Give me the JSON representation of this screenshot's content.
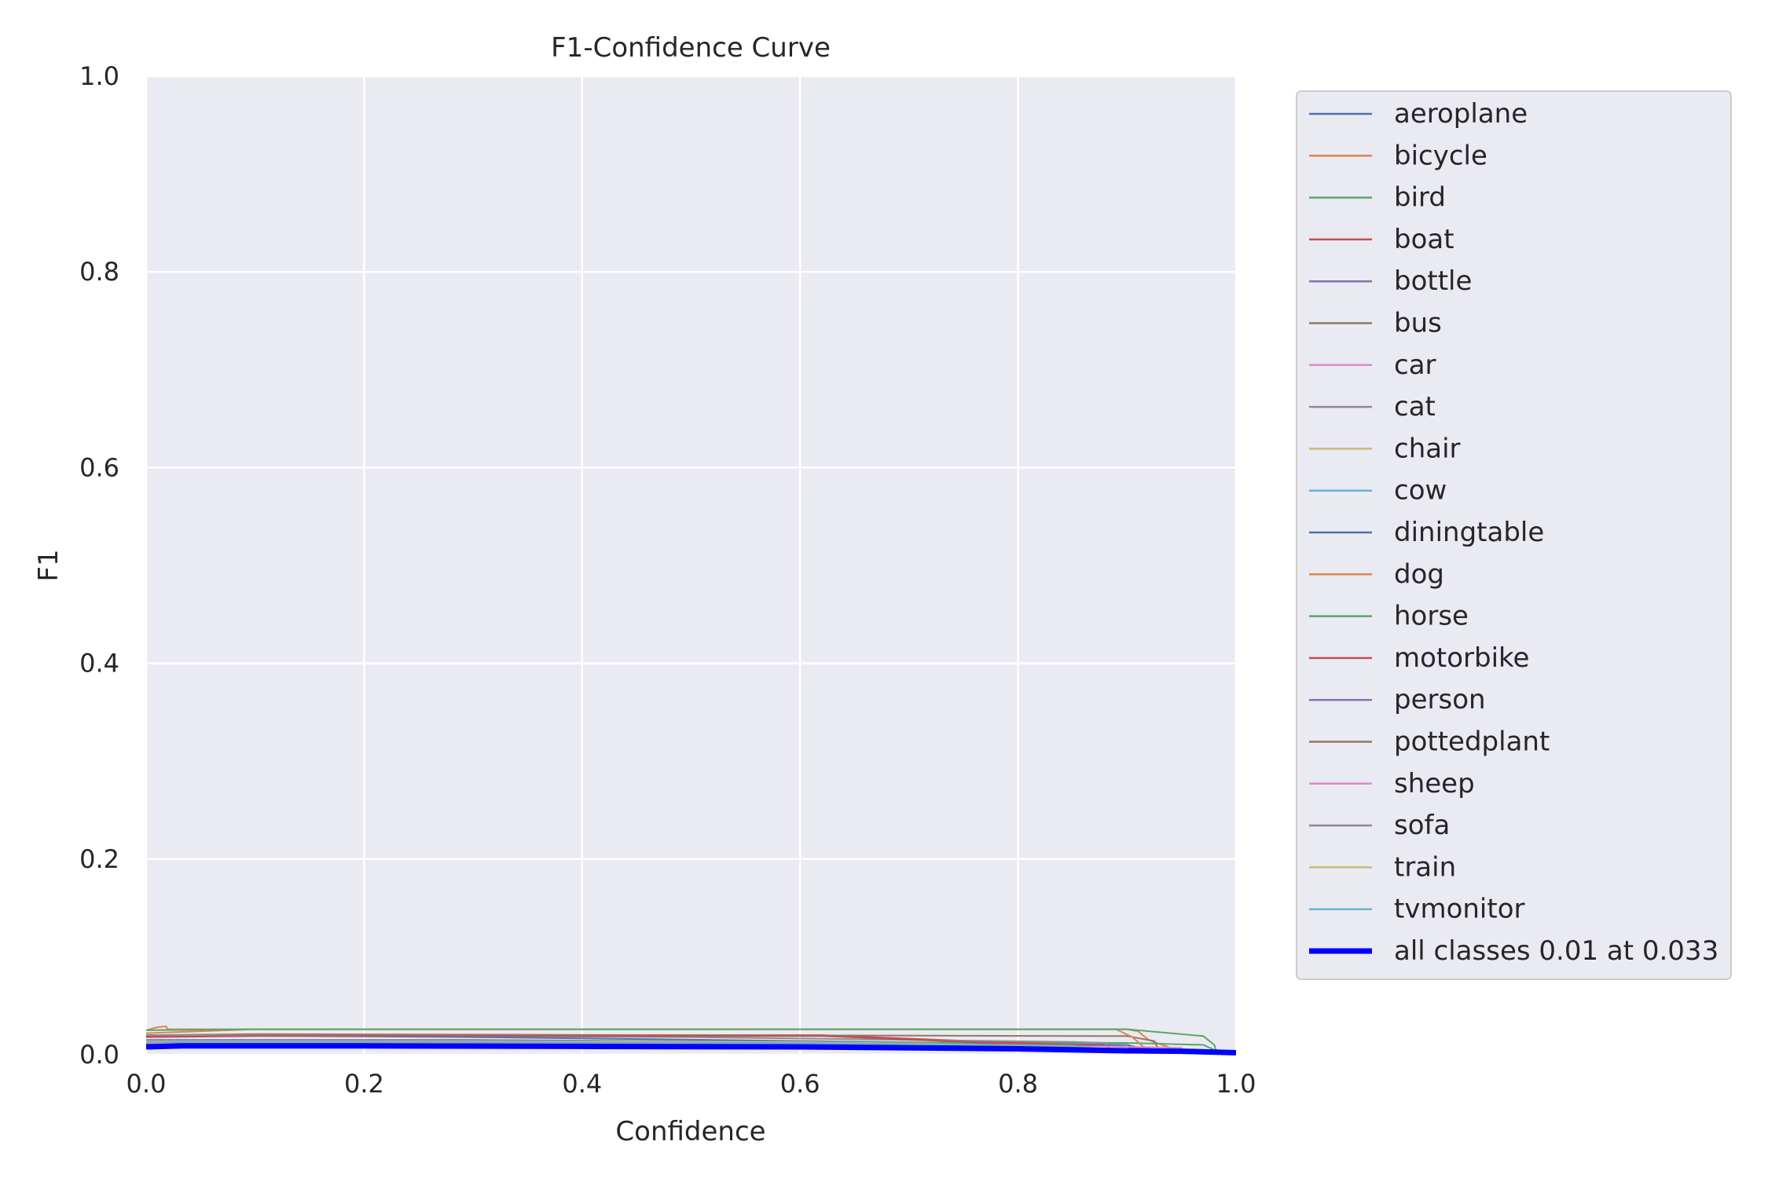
{
  "chart_data": {
    "type": "line",
    "title": "F1-Confidence Curve",
    "xlabel": "Confidence",
    "ylabel": "F1",
    "xlim": [
      0,
      1
    ],
    "ylim": [
      0,
      1
    ],
    "x_ticks": [
      "0.0",
      "0.2",
      "0.4",
      "0.6",
      "0.8",
      "1.0"
    ],
    "y_ticks": [
      "0.0",
      "0.2",
      "0.4",
      "0.6",
      "0.8",
      "1.0"
    ],
    "grid": true,
    "legend_position": "outside-right",
    "series": [
      {
        "name": "aeroplane",
        "color": "#4c72b0",
        "x": [
          0,
          0.01,
          0.3,
          0.6,
          0.9,
          0.93
        ],
        "y": [
          0.018,
          0.02,
          0.018,
          0.014,
          0.01,
          0.002
        ]
      },
      {
        "name": "bicycle",
        "color": "#dd8452",
        "x": [
          0,
          0.01,
          0.018,
          0.02,
          0.1,
          0.5,
          0.9,
          0.91,
          0.92,
          0.95
        ],
        "y": [
          0.025,
          0.028,
          0.029,
          0.026,
          0.026,
          0.026,
          0.026,
          0.024,
          0.015,
          0.003
        ]
      },
      {
        "name": "bird",
        "color": "#55a868",
        "x": [
          0,
          0.2,
          0.5,
          0.9,
          0.97,
          0.98,
          0.985
        ],
        "y": [
          0.014,
          0.014,
          0.013,
          0.012,
          0.01,
          0.005,
          0.001
        ]
      },
      {
        "name": "boat",
        "color": "#c44e52",
        "x": [
          0,
          0.05,
          0.3,
          0.62,
          0.8,
          0.9,
          0.93
        ],
        "y": [
          0.019,
          0.02,
          0.02,
          0.02,
          0.012,
          0.008,
          0.003
        ]
      },
      {
        "name": "bottle",
        "color": "#8172b3",
        "x": [
          0,
          0.3,
          0.6,
          0.85,
          0.9
        ],
        "y": [
          0.012,
          0.012,
          0.011,
          0.008,
          0.002
        ]
      },
      {
        "name": "bus",
        "color": "#937860",
        "x": [
          0,
          0.1,
          0.5,
          0.9,
          0.925,
          0.93
        ],
        "y": [
          0.02,
          0.021,
          0.02,
          0.019,
          0.014,
          0.003
        ]
      },
      {
        "name": "car",
        "color": "#da8bc3",
        "x": [
          0,
          0.3,
          0.6,
          0.85,
          0.9
        ],
        "y": [
          0.013,
          0.013,
          0.012,
          0.009,
          0.002
        ]
      },
      {
        "name": "cat",
        "color": "#8c8c8c",
        "x": [
          0,
          0.1,
          0.5,
          0.85,
          0.88,
          0.885
        ],
        "y": [
          0.02,
          0.02,
          0.018,
          0.013,
          0.012,
          0.002
        ]
      },
      {
        "name": "chair",
        "color": "#ccb974",
        "x": [
          0,
          0.3,
          0.6,
          0.85,
          0.9
        ],
        "y": [
          0.011,
          0.011,
          0.01,
          0.007,
          0.002
        ]
      },
      {
        "name": "cow",
        "color": "#64b5cd",
        "x": [
          0,
          0.3,
          0.6,
          0.85,
          0.9
        ],
        "y": [
          0.012,
          0.012,
          0.011,
          0.008,
          0.002
        ]
      },
      {
        "name": "diningtable",
        "color": "#4c72b0",
        "x": [
          0,
          0.3,
          0.6,
          0.85,
          0.9
        ],
        "y": [
          0.015,
          0.015,
          0.013,
          0.009,
          0.002
        ]
      },
      {
        "name": "dog",
        "color": "#dd8452",
        "x": [
          0,
          0.1,
          0.5,
          0.89,
          0.905,
          0.915,
          0.93
        ],
        "y": [
          0.022,
          0.026,
          0.026,
          0.026,
          0.018,
          0.008,
          0.002
        ]
      },
      {
        "name": "horse",
        "color": "#55a868",
        "x": [
          0,
          0.1,
          0.5,
          0.9,
          0.97,
          0.98,
          0.982
        ],
        "y": [
          0.025,
          0.026,
          0.026,
          0.026,
          0.019,
          0.01,
          0.004
        ]
      },
      {
        "name": "motorbike",
        "color": "#c44e52",
        "x": [
          0,
          0.1,
          0.5,
          0.62,
          0.8,
          0.9,
          0.95
        ],
        "y": [
          0.018,
          0.019,
          0.019,
          0.019,
          0.011,
          0.008,
          0.003
        ]
      },
      {
        "name": "person",
        "color": "#8172b3",
        "x": [
          0,
          0.3,
          0.6,
          0.85,
          0.9
        ],
        "y": [
          0.01,
          0.01,
          0.009,
          0.006,
          0.002
        ]
      },
      {
        "name": "pottedplant",
        "color": "#937860",
        "x": [
          0,
          0.3,
          0.6,
          0.85,
          0.9
        ],
        "y": [
          0.011,
          0.011,
          0.01,
          0.007,
          0.002
        ]
      },
      {
        "name": "sheep",
        "color": "#da8bc3",
        "x": [
          0,
          0.3,
          0.6,
          0.9,
          0.95,
          0.952
        ],
        "y": [
          0.012,
          0.012,
          0.011,
          0.008,
          0.007,
          0.002
        ]
      },
      {
        "name": "sofa",
        "color": "#8c8c8c",
        "x": [
          0,
          0.3,
          0.6,
          0.85,
          0.9
        ],
        "y": [
          0.013,
          0.013,
          0.012,
          0.008,
          0.002
        ]
      },
      {
        "name": "train",
        "color": "#ccb974",
        "x": [
          0,
          0.3,
          0.6,
          0.85,
          0.9
        ],
        "y": [
          0.014,
          0.014,
          0.013,
          0.009,
          0.002
        ]
      },
      {
        "name": "tvmonitor",
        "color": "#64b5cd",
        "x": [
          0,
          0.3,
          0.6,
          0.85,
          0.9
        ],
        "y": [
          0.013,
          0.013,
          0.012,
          0.009,
          0.002
        ]
      },
      {
        "name": "all classes 0.01 at 0.033",
        "color": "#0000ff",
        "bold": true,
        "x": [
          0,
          0.033,
          0.2,
          0.4,
          0.6,
          0.8,
          0.9,
          0.95,
          1.0
        ],
        "y": [
          0.008,
          0.009,
          0.009,
          0.0085,
          0.008,
          0.006,
          0.004,
          0.0035,
          0.002
        ]
      }
    ]
  }
}
